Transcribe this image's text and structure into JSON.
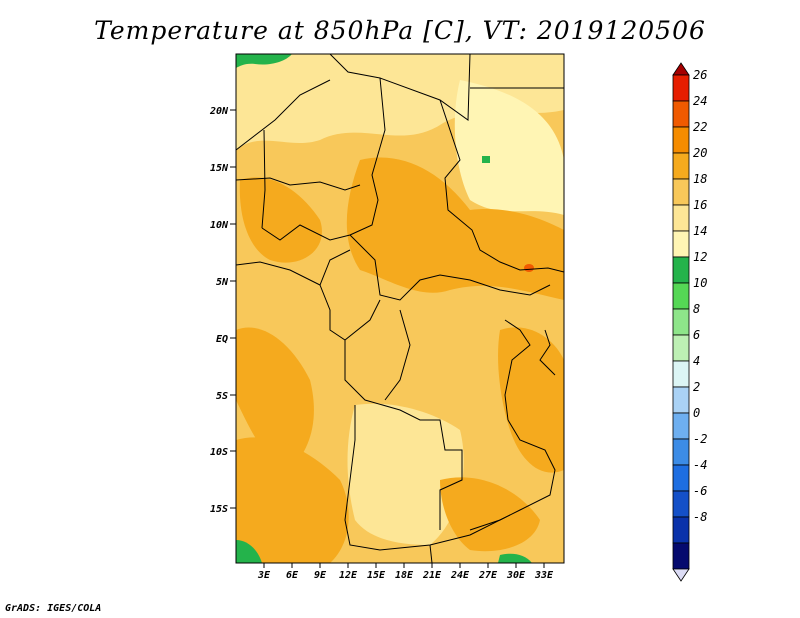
{
  "title": "Temperature at 850hPa [C], VT: 2019120506",
  "credit": "GrADS: IGES/COLA",
  "map": {
    "lat_ticks": [
      "20N",
      "15N",
      "10N",
      "5N",
      "EQ",
      "5S",
      "10S",
      "15S"
    ],
    "lon_ticks": [
      "3E",
      "6E",
      "9E",
      "12E",
      "15E",
      "18E",
      "21E",
      "24E",
      "27E",
      "30E",
      "33E"
    ]
  },
  "colorbar": {
    "labels": [
      "26",
      "24",
      "22",
      "20",
      "18",
      "16",
      "14",
      "12",
      "10",
      "8",
      "6",
      "4",
      "2",
      "0",
      "-2",
      "-4",
      "-6",
      "-8"
    ],
    "colors": [
      "#a50000",
      "#e61e00",
      "#f05a00",
      "#f58c00",
      "#f5aa1e",
      "#f8c85a",
      "#fde696",
      "#fff5b4",
      "#24b34b",
      "#55d755",
      "#8ee58a",
      "#bdf0b4",
      "#dcf5f5",
      "#aad2f5",
      "#6eaff0",
      "#3c8ce6",
      "#1e6ee1",
      "#1450c8",
      "#0a32aa",
      "#050a6e",
      "#dcdcf5"
    ]
  }
}
